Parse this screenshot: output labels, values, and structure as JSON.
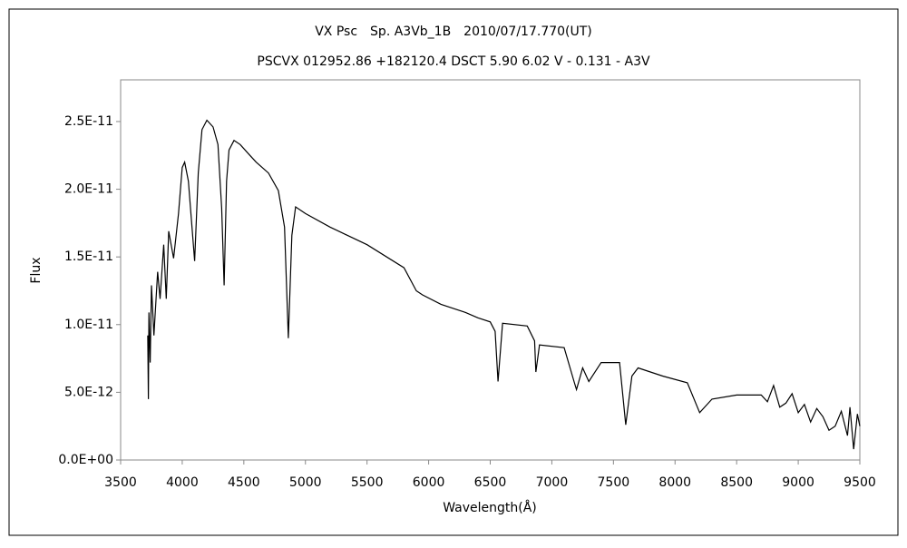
{
  "chart_data": {
    "type": "line",
    "title": "VX Psc　Sp. A3Vb_1B　2010/07/17.770(UT)",
    "subtitle": "PSCVX 012952.86 +182120.4 DSCT 5.90 6.02 V - 0.131 - A3V",
    "x_label": "Wavelength(Å)",
    "y_label": "Flux",
    "xlim": [
      3500,
      9500
    ],
    "xticks": [
      3500,
      4000,
      4500,
      5000,
      5500,
      6000,
      6500,
      7000,
      7500,
      8000,
      8500,
      9000,
      9500
    ],
    "ylim": [
      0,
      2.808e-11
    ],
    "yticks": [
      {
        "value": 0,
        "label": "0.0E+00"
      },
      {
        "value": 5e-12,
        "label": "5.0E-12"
      },
      {
        "value": 1e-11,
        "label": "1.0E-11"
      },
      {
        "value": 1.5e-11,
        "label": "1.5E-11"
      },
      {
        "value": 2e-11,
        "label": "2.0E-11"
      },
      {
        "value": 2.5e-11,
        "label": "2.5E-11"
      }
    ],
    "grid": false,
    "series": [
      {
        "color": "#000000",
        "x": [
          3720,
          3725,
          3730,
          3740,
          3750,
          3770,
          3800,
          3820,
          3850,
          3870,
          3890,
          3930,
          3970,
          4000,
          4020,
          4050,
          4101,
          4130,
          4160,
          4200,
          4250,
          4290,
          4320,
          4340,
          4360,
          4380,
          4420,
          4470,
          4550,
          4600,
          4700,
          4780,
          4830,
          4861,
          4890,
          4920,
          5000,
          5200,
          5500,
          5800,
          5900,
          5950,
          6100,
          6300,
          6400,
          6500,
          6540,
          6563,
          6600,
          6800,
          6860,
          6870,
          6900,
          7100,
          7180,
          7200,
          7250,
          7300,
          7400,
          7550,
          7600,
          7650,
          7700,
          7900,
          8100,
          8200,
          8300,
          8500,
          8700,
          8750,
          8800,
          8850,
          8900,
          8950,
          9000,
          9050,
          9100,
          9150,
          9200,
          9250,
          9300,
          9350,
          9400,
          9420,
          9450,
          9480,
          9500
        ],
        "values": [
          9.2e-12,
          4.5e-12,
          1.09e-11,
          7.2e-12,
          1.29e-11,
          9.2e-12,
          1.39e-11,
          1.19e-11,
          1.59e-11,
          1.19e-11,
          1.69e-11,
          1.49e-11,
          1.82e-11,
          2.16e-11,
          2.2e-11,
          2.06e-11,
          1.47e-11,
          2.12e-11,
          2.44e-11,
          2.51e-11,
          2.46e-11,
          2.33e-11,
          1.86e-11,
          1.29e-11,
          2.06e-11,
          2.29e-11,
          2.36e-11,
          2.33e-11,
          2.25e-11,
          2.2e-11,
          2.12e-11,
          1.99e-11,
          1.72e-11,
          9e-12,
          1.66e-11,
          1.87e-11,
          1.82e-11,
          1.72e-11,
          1.59e-11,
          1.42e-11,
          1.25e-11,
          1.22e-11,
          1.15e-11,
          1.09e-11,
          1.05e-11,
          1.02e-11,
          9.5e-12,
          5.8e-12,
          1.01e-11,
          9.9e-12,
          8.8e-12,
          6.5e-12,
          8.5e-12,
          8.3e-12,
          5.8e-12,
          5.2e-12,
          6.8e-12,
          5.8e-12,
          7.2e-12,
          7.2e-12,
          2.6e-12,
          6.2e-12,
          6.8e-12,
          6.2e-12,
          5.7e-12,
          3.5e-12,
          4.5e-12,
          4.8e-12,
          4.8e-12,
          4.3e-12,
          5.5e-12,
          3.9e-12,
          4.2e-12,
          4.9e-12,
          3.5e-12,
          4.1e-12,
          2.8e-12,
          3.8e-12,
          3.2e-12,
          2.2e-12,
          2.5e-12,
          3.6e-12,
          1.8e-12,
          3.9e-12,
          8e-13,
          3.4e-12,
          2.5e-12
        ]
      }
    ]
  }
}
